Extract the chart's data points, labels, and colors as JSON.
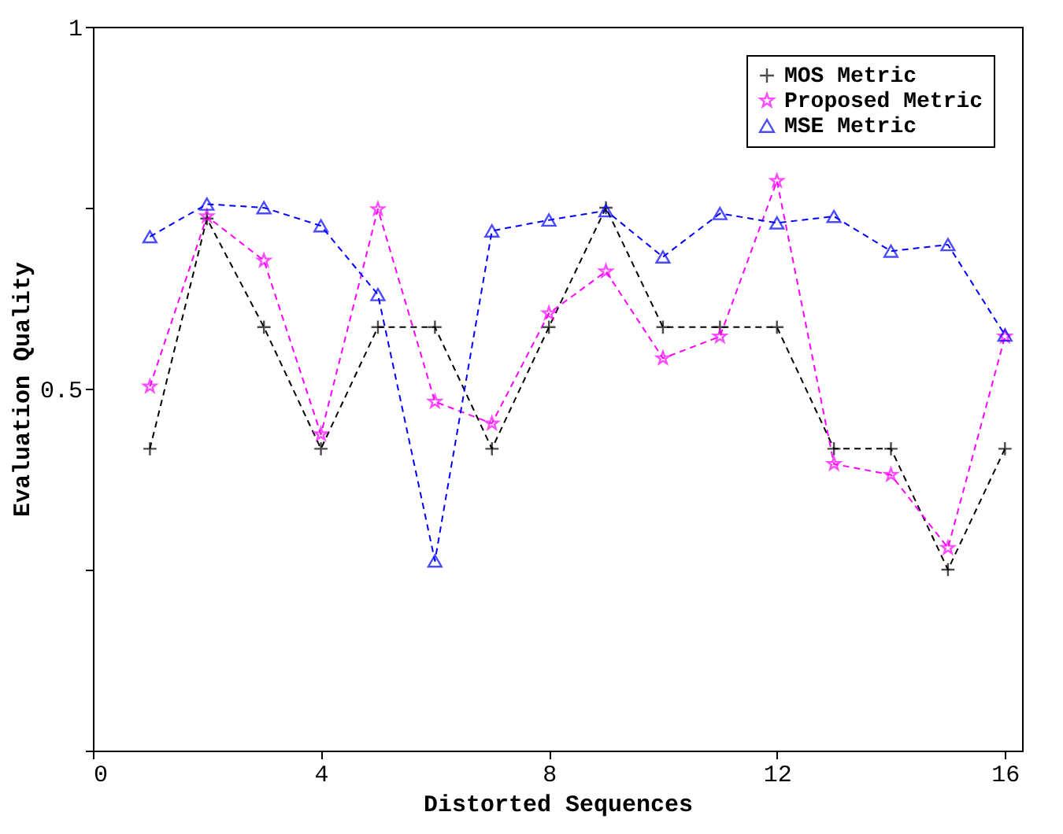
{
  "chart_data": {
    "type": "line",
    "xlabel": "Distorted Sequences",
    "ylabel": "Evaluation Quality",
    "x": [
      1,
      2,
      3,
      4,
      5,
      6,
      7,
      8,
      9,
      10,
      11,
      12,
      13,
      14,
      15,
      16
    ],
    "xlim": [
      0,
      16.3
    ],
    "xticks": [
      0,
      4,
      8,
      12,
      16
    ],
    "ylim": [
      0,
      1
    ],
    "yticks": [
      {
        "value": 0,
        "label": null
      },
      {
        "value": 0.25,
        "label": null
      },
      0.5,
      {
        "value": 0.75,
        "label": null
      },
      1
    ],
    "grid": false,
    "legend": "top right",
    "line_style": "dashed",
    "series": [
      {
        "name": "MOS Metric",
        "color": "#000000",
        "marker": "cross",
        "values": [
          0.417,
          0.735,
          0.585,
          0.417,
          0.585,
          0.585,
          0.417,
          0.585,
          0.75,
          0.585,
          0.585,
          0.585,
          0.417,
          0.417,
          0.25,
          0.417
        ]
      },
      {
        "name": "Proposed Metric",
        "color": "#ff00ff",
        "marker": "star",
        "values": [
          0.503,
          0.738,
          0.677,
          0.437,
          0.748,
          0.482,
          0.452,
          0.604,
          0.662,
          0.542,
          0.572,
          0.787,
          0.396,
          0.381,
          0.28,
          0.572
        ]
      },
      {
        "name": "MSE Metric",
        "color": "#0000ff",
        "marker": "triangle",
        "values": [
          0.71,
          0.755,
          0.75,
          0.725,
          0.63,
          0.262,
          0.718,
          0.733,
          0.746,
          0.682,
          0.742,
          0.729,
          0.738,
          0.69,
          0.699,
          0.574
        ]
      }
    ]
  }
}
